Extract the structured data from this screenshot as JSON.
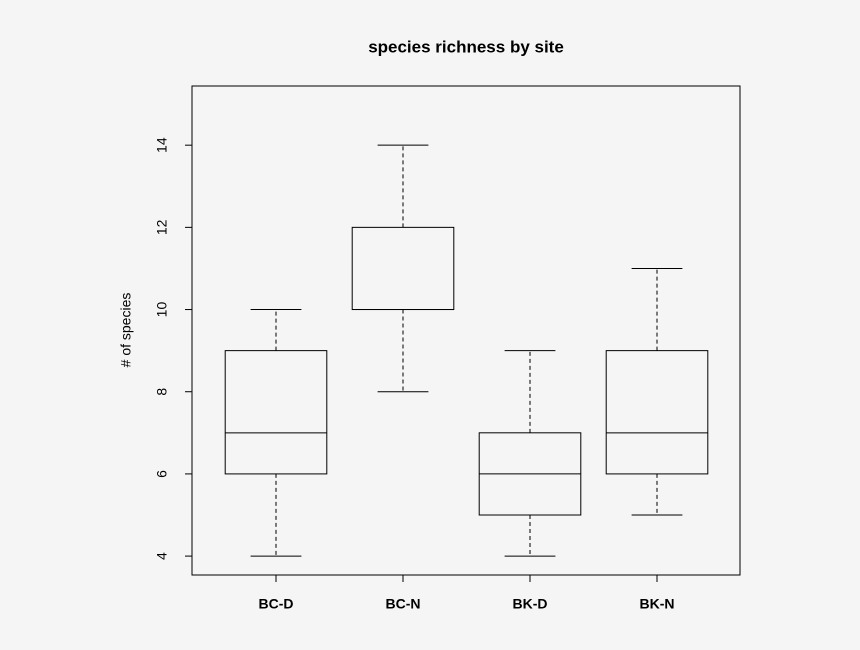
{
  "chart_data": {
    "type": "box",
    "title": "species richness by site",
    "y_label": "# of species",
    "categories": [
      "BC-D",
      "BC-N",
      "BK-D",
      "BK-N"
    ],
    "boxes": [
      {
        "min": 4,
        "q1": 6,
        "median": 7,
        "q3": 9,
        "max": 10
      },
      {
        "min": 8,
        "q1": 10,
        "median": 10,
        "q3": 12,
        "max": 14
      },
      {
        "min": 4,
        "q1": 5,
        "median": 6,
        "q3": 7,
        "max": 9
      },
      {
        "min": 5,
        "q1": 6,
        "median": 7,
        "q3": 9,
        "max": 11
      }
    ],
    "ylim": [
      3.54,
      15.44
    ],
    "yticks": [
      4,
      6,
      8,
      10,
      12,
      14
    ],
    "color": "#000000"
  }
}
